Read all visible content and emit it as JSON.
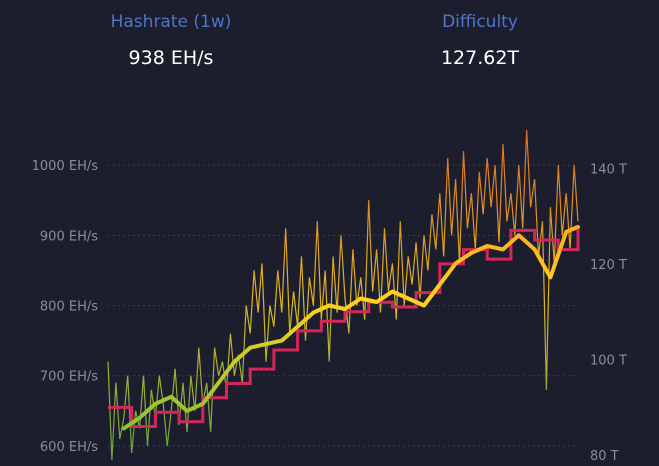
{
  "stats": {
    "hashrate": {
      "label": "Hashrate (1w)",
      "value": "938 EH/s"
    },
    "difficulty": {
      "label": "Difficulty",
      "value": "127.62T"
    }
  },
  "colors": {
    "background": "#1d1e2d",
    "label": "#4f74c9",
    "difficulty_line": "#d4265b",
    "hashrate_low": "#7fbf3f",
    "hashrate_mid": "#ffd21e",
    "hashrate_high": "#ff7a26",
    "gridline": "#3a3c4e"
  },
  "chart_data": {
    "type": "line",
    "title": "",
    "xlabel": "",
    "y_left": {
      "unit": "EH/s",
      "range": [
        580,
        1050
      ],
      "ticks": [
        "600 EH/s",
        "700 EH/s",
        "800 EH/s",
        "900 EH/s",
        "1000 EH/s"
      ],
      "tick_values": [
        600,
        700,
        800,
        900,
        1000
      ]
    },
    "y_right": {
      "unit": "T",
      "range": [
        79,
        148
      ],
      "ticks": [
        "80 T",
        "100 T",
        "120 T",
        "140 T"
      ],
      "tick_values": [
        80,
        100,
        120,
        140
      ]
    },
    "grid": true,
    "series": [
      {
        "kind": "hashrate-daily",
        "axis": "left",
        "x": [
          0,
          1,
          2,
          3,
          4,
          5,
          6,
          7,
          8,
          9,
          10,
          11,
          12,
          13,
          14,
          15,
          16,
          17,
          18,
          19,
          20,
          21,
          22,
          23,
          24,
          25,
          26,
          27,
          28,
          29,
          30,
          31,
          32,
          33,
          34,
          35,
          36,
          37,
          38,
          39,
          40,
          41,
          42,
          43,
          44,
          45,
          46,
          47,
          48,
          49,
          50,
          51,
          52,
          53,
          54,
          55,
          56,
          57,
          58,
          59,
          60,
          61,
          62,
          63,
          64,
          65,
          66,
          67,
          68,
          69,
          70,
          71,
          72,
          73,
          74,
          75,
          76,
          77,
          78,
          79,
          80,
          81,
          82,
          83,
          84,
          85,
          86,
          87,
          88,
          89,
          90,
          91,
          92,
          93,
          94,
          95,
          96,
          97,
          98,
          99,
          100,
          101,
          102,
          103,
          104,
          105,
          106,
          107,
          108,
          109,
          110,
          111,
          112,
          113,
          114,
          115,
          116,
          117,
          118,
          119
        ],
        "values": [
          720,
          580,
          690,
          610,
          640,
          700,
          590,
          650,
          625,
          700,
          600,
          680,
          640,
          700,
          660,
          600,
          650,
          710,
          630,
          690,
          620,
          700,
          650,
          740,
          660,
          690,
          620,
          740,
          700,
          720,
          680,
          760,
          700,
          730,
          690,
          800,
          760,
          850,
          790,
          860,
          720,
          800,
          770,
          850,
          790,
          910,
          760,
          820,
          770,
          870,
          750,
          840,
          800,
          920,
          780,
          850,
          720,
          870,
          790,
          900,
          810,
          760,
          880,
          800,
          840,
          780,
          950,
          820,
          880,
          790,
          910,
          820,
          860,
          780,
          920,
          800,
          870,
          830,
          890,
          810,
          900,
          850,
          930,
          880,
          960,
          870,
          1010,
          900,
          980,
          860,
          1020,
          910,
          960,
          880,
          990,
          930,
          1010,
          940,
          1000,
          890,
          1030,
          920,
          960,
          900,
          1000,
          910,
          1050,
          940,
          980,
          870,
          920,
          680,
          940,
          860,
          1000,
          900,
          960,
          880,
          1000,
          920
        ]
      },
      {
        "kind": "hashrate-average",
        "axis": "left",
        "x": [
          4,
          8,
          12,
          16,
          20,
          24,
          28,
          32,
          36,
          40,
          44,
          48,
          52,
          56,
          60,
          64,
          68,
          72,
          76,
          80,
          84,
          88,
          92,
          96,
          100,
          104,
          108,
          112,
          116,
          119
        ],
        "values": [
          625,
          640,
          660,
          670,
          650,
          660,
          690,
          720,
          740,
          745,
          750,
          770,
          790,
          800,
          795,
          810,
          805,
          820,
          810,
          800,
          830,
          860,
          875,
          885,
          880,
          900,
          880,
          840,
          905,
          912
        ]
      },
      {
        "kind": "difficulty",
        "axis": "right",
        "x": [
          0,
          6,
          12,
          18,
          24,
          30,
          36,
          42,
          48,
          54,
          60,
          66,
          72,
          78,
          84,
          90,
          96,
          102,
          108,
          114,
          119
        ],
        "values": [
          90,
          86,
          89,
          87,
          92,
          95,
          98,
          102,
          106,
          108,
          110,
          112,
          111,
          114,
          120,
          123,
          121,
          127,
          125,
          123,
          128
        ]
      }
    ]
  }
}
